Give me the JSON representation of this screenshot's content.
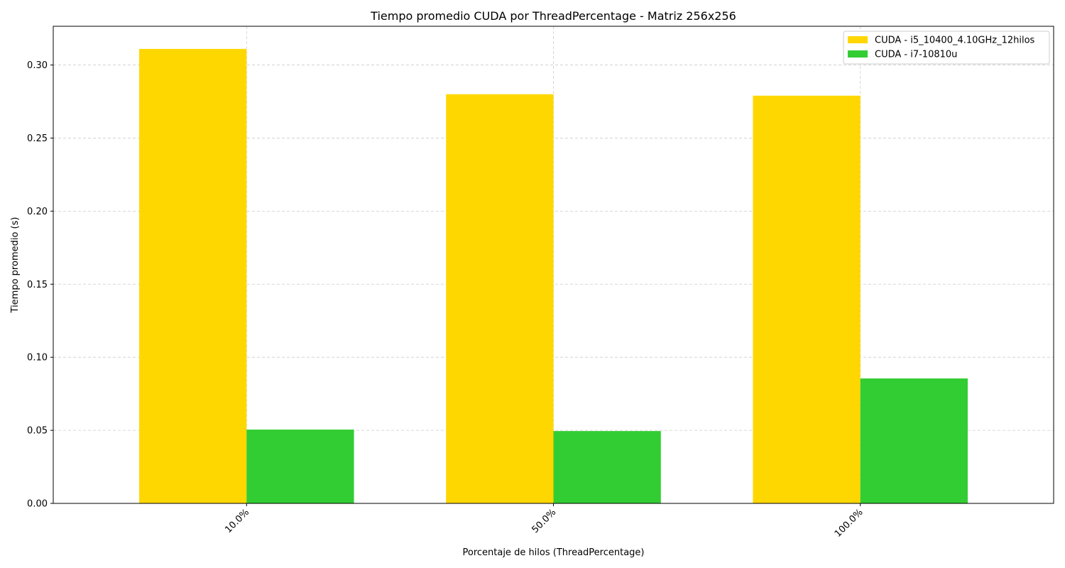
{
  "chart_data": {
    "type": "bar",
    "title": "Tiempo promedio CUDA por ThreadPercentage - Matriz 256x256",
    "xlabel": "Porcentaje de hilos (ThreadPercentage)",
    "ylabel": "Tiempo promedio (s)",
    "categories": [
      "10.0%",
      "50.0%",
      "100.0%"
    ],
    "series": [
      {
        "name": "CUDA - i5_10400_4.10GHz_12hilos",
        "values": [
          0.311,
          0.28,
          0.279
        ],
        "color": "#FFD700"
      },
      {
        "name": "CUDA - i7-10810u",
        "values": [
          0.0505,
          0.0495,
          0.0855
        ],
        "color": "#32CD32"
      }
    ],
    "ylim": [
      0,
      0.3265
    ],
    "yticks": [
      0.0,
      0.05,
      0.1,
      0.15,
      0.2,
      0.25,
      0.3
    ],
    "ytick_labels": [
      "0.00",
      "0.05",
      "0.10",
      "0.15",
      "0.20",
      "0.25",
      "0.30"
    ],
    "grid": true,
    "legend_position": "top-right"
  }
}
